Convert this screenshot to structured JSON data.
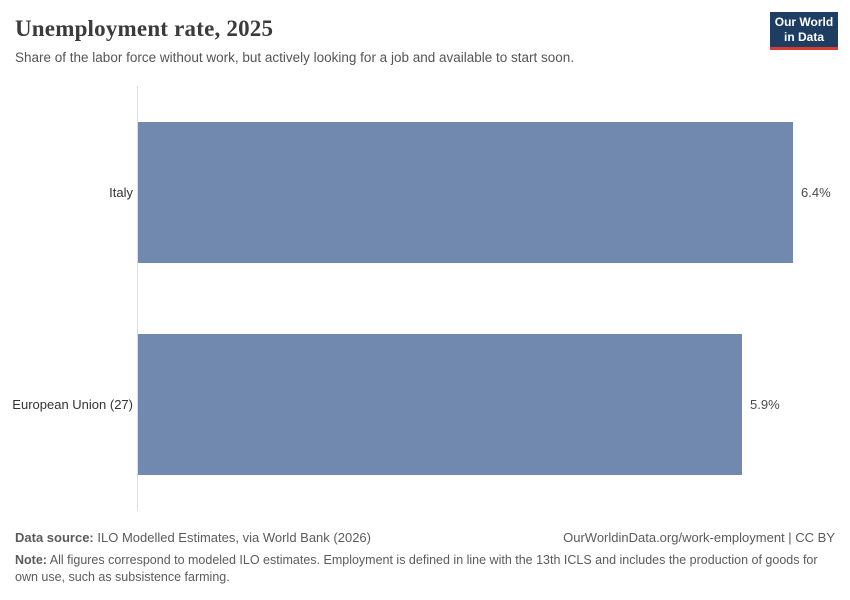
{
  "header": {
    "title": "Unemployment rate, 2025",
    "subtitle": "Share of the labor force without work, but actively looking for a job and available to start soon."
  },
  "logo": {
    "line1": "Our World",
    "line2": "in Data",
    "background_color": "#1d3d63",
    "accent_color": "#d93a34"
  },
  "chart_data": {
    "type": "bar",
    "orientation": "horizontal",
    "categories": [
      "Italy",
      "European Union (27)"
    ],
    "values": [
      6.4,
      5.9
    ],
    "value_labels": [
      "6.4%",
      "5.9%"
    ],
    "unit": "%",
    "xlim": [
      0,
      6.4
    ],
    "bar_color": "#7189af",
    "axis_line_color": "#dcdcdc",
    "grid": false,
    "legend": false,
    "title": "Unemployment rate, 2025",
    "xlabel": "",
    "ylabel": ""
  },
  "footer": {
    "datasource_label": "Data source:",
    "datasource_text": "ILO Modelled Estimates, via World Bank (2026)",
    "attribution": "OurWorldinData.org/work-employment | CC BY",
    "note_label": "Note:",
    "note_text": "All figures correspond to modeled ILO estimates. Employment is defined in line with the 13th ICLS and includes the production of goods for own use, such as subsistence farming."
  }
}
